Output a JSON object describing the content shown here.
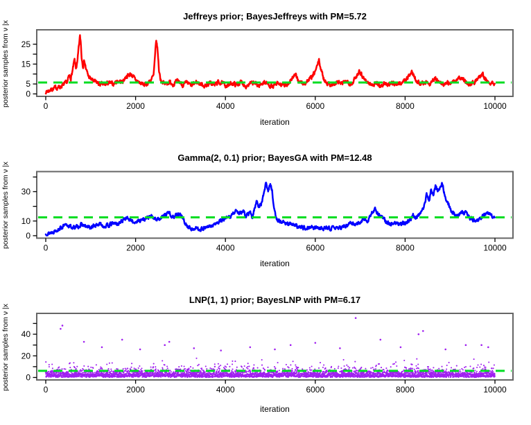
{
  "figure": {
    "background": "#ffffff",
    "pm_line_color": "#00dd22",
    "pm_line_style": "dashed",
    "axis_color": "#666666",
    "tick_color": "#000000"
  },
  "chart_data": [
    {
      "type": "line",
      "title": "Jeffreys prior; BayesJeffreys with PM=5.72",
      "xlabel": "iteration",
      "ylabel": "posterior samples from ν |x",
      "series_color": "#ff0000",
      "posterior_mean": 5.72,
      "xlim": [
        0,
        10000
      ],
      "ylim": [
        0,
        31
      ],
      "xticks": [
        0,
        2000,
        4000,
        6000,
        8000,
        10000
      ],
      "yticks": [
        0,
        5,
        10,
        15,
        20,
        25
      ],
      "ytick_labels": [
        "0",
        "5",
        "",
        "15",
        "",
        "25"
      ],
      "grid": false,
      "legend": null,
      "noise_amplitude": 0.85,
      "seed": 7,
      "anchors": [
        [
          0,
          1
        ],
        [
          100,
          2
        ],
        [
          200,
          3
        ],
        [
          300,
          3.5
        ],
        [
          400,
          4.5
        ],
        [
          480,
          6
        ],
        [
          520,
          9
        ],
        [
          560,
          8
        ],
        [
          600,
          12
        ],
        [
          640,
          17
        ],
        [
          670,
          13
        ],
        [
          700,
          15
        ],
        [
          730,
          22
        ],
        [
          760,
          29
        ],
        [
          780,
          26
        ],
        [
          800,
          18
        ],
        [
          830,
          14
        ],
        [
          860,
          17
        ],
        [
          900,
          12
        ],
        [
          950,
          9
        ],
        [
          1000,
          7.5
        ],
        [
          1100,
          6
        ],
        [
          1200,
          5
        ],
        [
          1300,
          4.5
        ],
        [
          1400,
          5.5
        ],
        [
          1500,
          5
        ],
        [
          1600,
          6.5
        ],
        [
          1700,
          6
        ],
        [
          1800,
          9
        ],
        [
          1900,
          10
        ],
        [
          2000,
          7
        ],
        [
          2100,
          5.5
        ],
        [
          2200,
          4.5
        ],
        [
          2300,
          6
        ],
        [
          2400,
          9
        ],
        [
          2460,
          27
        ],
        [
          2490,
          22
        ],
        [
          2520,
          12
        ],
        [
          2560,
          7
        ],
        [
          2650,
          5
        ],
        [
          2750,
          6
        ],
        [
          2850,
          5
        ],
        [
          2950,
          6.5
        ],
        [
          3050,
          4.5
        ],
        [
          3150,
          5.5
        ],
        [
          3250,
          4
        ],
        [
          3350,
          6
        ],
        [
          3450,
          5
        ],
        [
          3550,
          4
        ],
        [
          3650,
          5.5
        ],
        [
          3750,
          4.5
        ],
        [
          3850,
          6
        ],
        [
          3950,
          5
        ],
        [
          4050,
          4
        ],
        [
          4150,
          5.5
        ],
        [
          4250,
          4.5
        ],
        [
          4350,
          6
        ],
        [
          4450,
          4
        ],
        [
          4550,
          5
        ],
        [
          4650,
          5.5
        ],
        [
          4750,
          4
        ],
        [
          4850,
          6
        ],
        [
          4950,
          5
        ],
        [
          5050,
          3.5
        ],
        [
          5150,
          5
        ],
        [
          5250,
          4.5
        ],
        [
          5350,
          4
        ],
        [
          5450,
          7
        ],
        [
          5550,
          9.5
        ],
        [
          5650,
          6
        ],
        [
          5750,
          5
        ],
        [
          5850,
          7
        ],
        [
          5950,
          9
        ],
        [
          6030,
          13
        ],
        [
          6080,
          17
        ],
        [
          6130,
          12
        ],
        [
          6200,
          7
        ],
        [
          6300,
          5
        ],
        [
          6400,
          4.5
        ],
        [
          6500,
          6
        ],
        [
          6600,
          5
        ],
        [
          6700,
          6.5
        ],
        [
          6800,
          5
        ],
        [
          6900,
          8
        ],
        [
          6980,
          12
        ],
        [
          7050,
          9
        ],
        [
          7150,
          6
        ],
        [
          7250,
          4.5
        ],
        [
          7350,
          5.5
        ],
        [
          7450,
          4
        ],
        [
          7550,
          5
        ],
        [
          7650,
          4.5
        ],
        [
          7750,
          5.5
        ],
        [
          7850,
          5
        ],
        [
          7950,
          6
        ],
        [
          8050,
          8
        ],
        [
          8150,
          11
        ],
        [
          8250,
          7
        ],
        [
          8350,
          5
        ],
        [
          8450,
          6
        ],
        [
          8550,
          5
        ],
        [
          8650,
          8
        ],
        [
          8750,
          6
        ],
        [
          8850,
          4.5
        ],
        [
          8950,
          5.5
        ],
        [
          9050,
          6
        ],
        [
          9150,
          7
        ],
        [
          9250,
          8
        ],
        [
          9350,
          6
        ],
        [
          9450,
          5
        ],
        [
          9550,
          6
        ],
        [
          9650,
          9
        ],
        [
          9720,
          10.5
        ],
        [
          9800,
          7
        ],
        [
          9900,
          6
        ],
        [
          10000,
          5
        ]
      ]
    },
    {
      "type": "line",
      "title": "Gamma(2, 0.1) prior; BayesGA with PM=12.48",
      "xlabel": "iteration",
      "ylabel": "posterior samples from ν |x",
      "series_color": "#0000ff",
      "posterior_mean": 12.48,
      "xlim": [
        0,
        10000
      ],
      "ylim": [
        0,
        42
      ],
      "xticks": [
        0,
        2000,
        4000,
        6000,
        8000,
        10000
      ],
      "yticks": [
        0,
        10,
        20,
        30,
        40
      ],
      "ytick_labels": [
        "0",
        "10",
        "",
        "30",
        ""
      ],
      "grid": false,
      "legend": null,
      "noise_amplitude": 1.0,
      "seed": 13,
      "anchors": [
        [
          0,
          0.8
        ],
        [
          100,
          2
        ],
        [
          250,
          4
        ],
        [
          400,
          6.5
        ],
        [
          500,
          7
        ],
        [
          600,
          5.5
        ],
        [
          700,
          6
        ],
        [
          800,
          7.5
        ],
        [
          900,
          6
        ],
        [
          1000,
          5.5
        ],
        [
          1100,
          7
        ],
        [
          1200,
          8
        ],
        [
          1300,
          6.5
        ],
        [
          1400,
          7
        ],
        [
          1500,
          8.5
        ],
        [
          1600,
          8
        ],
        [
          1700,
          10
        ],
        [
          1800,
          13
        ],
        [
          1850,
          11
        ],
        [
          1950,
          9
        ],
        [
          2050,
          10
        ],
        [
          2150,
          11
        ],
        [
          2250,
          12
        ],
        [
          2350,
          13
        ],
        [
          2450,
          11
        ],
        [
          2550,
          12
        ],
        [
          2650,
          14
        ],
        [
          2750,
          16
        ],
        [
          2800,
          13
        ],
        [
          2900,
          14
        ],
        [
          3000,
          15
        ],
        [
          3060,
          11
        ],
        [
          3150,
          6
        ],
        [
          3250,
          4.5
        ],
        [
          3350,
          5
        ],
        [
          3450,
          4.5
        ],
        [
          3550,
          5.5
        ],
        [
          3650,
          6
        ],
        [
          3750,
          7.5
        ],
        [
          3850,
          9
        ],
        [
          3950,
          11
        ],
        [
          4050,
          12
        ],
        [
          4150,
          14
        ],
        [
          4250,
          18
        ],
        [
          4300,
          15
        ],
        [
          4400,
          17
        ],
        [
          4450,
          13
        ],
        [
          4550,
          16
        ],
        [
          4600,
          12
        ],
        [
          4650,
          19
        ],
        [
          4700,
          24
        ],
        [
          4750,
          19
        ],
        [
          4800,
          22
        ],
        [
          4850,
          28
        ],
        [
          4900,
          36
        ],
        [
          4950,
          31
        ],
        [
          5000,
          35
        ],
        [
          5040,
          30
        ],
        [
          5080,
          20
        ],
        [
          5120,
          12
        ],
        [
          5200,
          10
        ],
        [
          5300,
          9
        ],
        [
          5450,
          8
        ],
        [
          5600,
          6
        ],
        [
          5750,
          5.5
        ],
        [
          5900,
          6
        ],
        [
          6050,
          5
        ],
        [
          6200,
          5.5
        ],
        [
          6350,
          5
        ],
        [
          6500,
          5.5
        ],
        [
          6650,
          6
        ],
        [
          6800,
          9
        ],
        [
          6900,
          8
        ],
        [
          7000,
          9
        ],
        [
          7080,
          12
        ],
        [
          7160,
          10
        ],
        [
          7250,
          14
        ],
        [
          7330,
          19
        ],
        [
          7400,
          15
        ],
        [
          7500,
          12
        ],
        [
          7600,
          9
        ],
        [
          7700,
          8
        ],
        [
          7800,
          8.5
        ],
        [
          7900,
          8
        ],
        [
          8000,
          8.5
        ],
        [
          8100,
          10
        ],
        [
          8180,
          14
        ],
        [
          8260,
          12
        ],
        [
          8340,
          16
        ],
        [
          8420,
          20
        ],
        [
          8480,
          28
        ],
        [
          8530,
          24
        ],
        [
          8580,
          31
        ],
        [
          8630,
          27
        ],
        [
          8680,
          34
        ],
        [
          8730,
          30
        ],
        [
          8780,
          33
        ],
        [
          8830,
          36
        ],
        [
          8880,
          28
        ],
        [
          8950,
          22
        ],
        [
          9050,
          16
        ],
        [
          9150,
          14
        ],
        [
          9250,
          15.5
        ],
        [
          9350,
          16
        ],
        [
          9450,
          12
        ],
        [
          9550,
          10
        ],
        [
          9650,
          12
        ],
        [
          9750,
          14
        ],
        [
          9850,
          15
        ],
        [
          9950,
          13
        ],
        [
          10000,
          12.5
        ]
      ]
    },
    {
      "type": "scatter",
      "title": "LNP(1, 1) prior; BayesLNP with PM=6.17",
      "xlabel": "iteration",
      "ylabel": "posterior samples from ν |x",
      "series_color": "#a020f0",
      "posterior_mean": 6.17,
      "xlim": [
        0,
        10000
      ],
      "ylim": [
        0,
        57
      ],
      "xticks": [
        0,
        2000,
        4000,
        6000,
        8000,
        10000
      ],
      "yticks": [
        0,
        10,
        20,
        30,
        40,
        50
      ],
      "ytick_labels": [
        "0",
        "",
        "20",
        "",
        "40",
        ""
      ],
      "grid": false,
      "legend": null,
      "n_points": 4200,
      "seed": 29,
      "band": {
        "min": 0.5,
        "median": 5.5,
        "typical_max": 20
      },
      "outliers": [
        [
          330,
          45
        ],
        [
          370,
          48
        ],
        [
          850,
          33
        ],
        [
          1250,
          28
        ],
        [
          1700,
          35
        ],
        [
          2100,
          26
        ],
        [
          2650,
          30
        ],
        [
          2750,
          33
        ],
        [
          3300,
          27
        ],
        [
          3900,
          25
        ],
        [
          4550,
          28
        ],
        [
          5100,
          26
        ],
        [
          5450,
          30
        ],
        [
          6000,
          32
        ],
        [
          6550,
          27
        ],
        [
          6900,
          55
        ],
        [
          7450,
          35
        ],
        [
          7900,
          28
        ],
        [
          8300,
          40
        ],
        [
          8400,
          43
        ],
        [
          8900,
          26
        ],
        [
          9350,
          30
        ],
        [
          9700,
          30
        ],
        [
          9850,
          28
        ]
      ]
    }
  ]
}
